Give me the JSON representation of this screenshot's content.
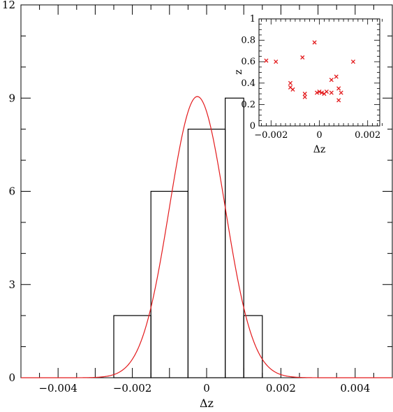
{
  "chart_data": [
    {
      "type": "histogram",
      "xlabel": "Δz",
      "ylabel": "",
      "xlim": [
        -0.005,
        0.005
      ],
      "ylim": [
        0,
        12
      ],
      "xticks": [
        -0.004,
        -0.002,
        0,
        0.002,
        0.004
      ],
      "xtick_labels": [
        "−0.004",
        "−0.002",
        "0",
        "0.002",
        "0.004"
      ],
      "yticks": [
        0,
        3,
        6,
        9,
        12
      ],
      "ytick_labels": [
        "0",
        "3",
        "6",
        "9",
        "12"
      ],
      "bins": [
        {
          "x0": -0.0025,
          "x1": -0.0015,
          "count": 2
        },
        {
          "x0": -0.0015,
          "x1": -0.0005,
          "count": 6
        },
        {
          "x0": -0.0005,
          "x1": 0.0005,
          "count": 8
        },
        {
          "x0": 0.0005,
          "x1": 0.001,
          "count": 9
        },
        {
          "x0": 0.001,
          "x1": 0.0015,
          "count": 2
        }
      ],
      "series": [
        {
          "kind": "gaussian-fit",
          "amplitude": 9.05,
          "mean": -0.00025,
          "sigma": 0.00075
        }
      ],
      "colors": {
        "histogram": "#000000",
        "fit": "#e31a1c"
      }
    },
    {
      "type": "scatter",
      "xlabel": "Δz",
      "ylabel": "z",
      "xlim": [
        -0.0025,
        0.0025
      ],
      "ylim": [
        0,
        1
      ],
      "xticks": [
        -0.002,
        0,
        0.002
      ],
      "xtick_labels": [
        "−0.002",
        "0",
        "0.002"
      ],
      "yticks": [
        0,
        0.2,
        0.4,
        0.6,
        0.8,
        1
      ],
      "ytick_labels": [
        "0",
        "0.2",
        "0.4",
        "0.6",
        "0.8",
        "1"
      ],
      "marker": "x",
      "color": "#e31a1c",
      "points": [
        {
          "x": -0.0022,
          "y": 0.61
        },
        {
          "x": -0.0018,
          "y": 0.6
        },
        {
          "x": -0.0012,
          "y": 0.4
        },
        {
          "x": -0.0012,
          "y": 0.36
        },
        {
          "x": -0.0011,
          "y": 0.34
        },
        {
          "x": -0.0007,
          "y": 0.64
        },
        {
          "x": -0.0006,
          "y": 0.3
        },
        {
          "x": -0.0006,
          "y": 0.27
        },
        {
          "x": -0.0002,
          "y": 0.78
        },
        {
          "x": -0.0001,
          "y": 0.31
        },
        {
          "x": 0.0,
          "y": 0.32
        },
        {
          "x": 0.0001,
          "y": 0.31
        },
        {
          "x": 0.0002,
          "y": 0.3
        },
        {
          "x": 0.0003,
          "y": 0.32
        },
        {
          "x": 0.0005,
          "y": 0.43
        },
        {
          "x": 0.0005,
          "y": 0.31
        },
        {
          "x": 0.0007,
          "y": 0.46
        },
        {
          "x": 0.0008,
          "y": 0.35
        },
        {
          "x": 0.0008,
          "y": 0.24
        },
        {
          "x": 0.0009,
          "y": 0.31
        },
        {
          "x": 0.0014,
          "y": 0.6
        }
      ]
    }
  ]
}
